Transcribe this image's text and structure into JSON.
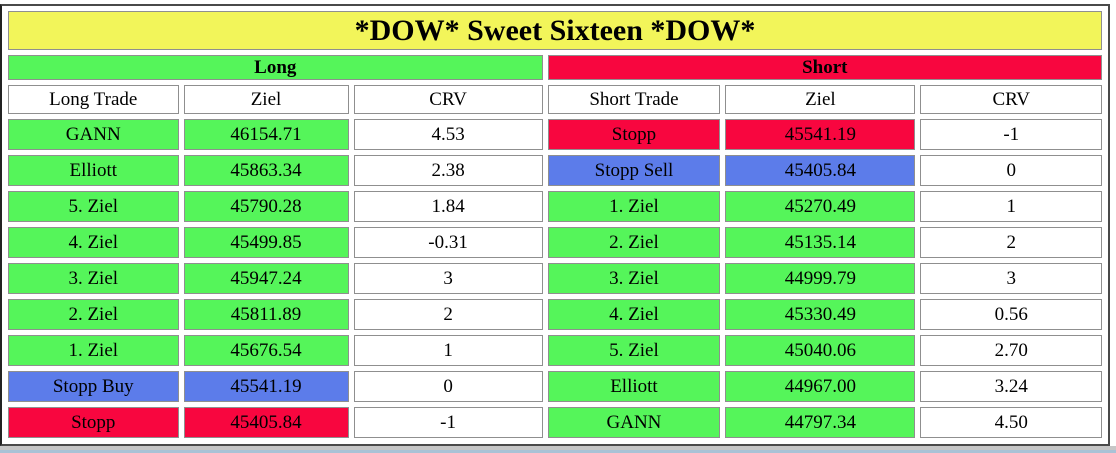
{
  "title": "*DOW* Sweet Sixteen *DOW*",
  "colors": {
    "yellow": "#F2F55A",
    "green": "#55F55A",
    "red": "#F8063F",
    "blue": "#5C7CEA",
    "cell_border": "#8f8f8f",
    "text": "#000000"
  },
  "sections": {
    "long": {
      "label": "Long",
      "header_color": "green",
      "columns": {
        "trade": "Long Trade",
        "ziel": "Ziel",
        "crv": "CRV"
      },
      "rows": [
        {
          "trade": "GANN",
          "ziel": "46154.71",
          "crv": "4.53",
          "color": "green"
        },
        {
          "trade": "Elliott",
          "ziel": "45863.34",
          "crv": "2.38",
          "color": "green"
        },
        {
          "trade": "5. Ziel",
          "ziel": "45790.28",
          "crv": "1.84",
          "color": "green"
        },
        {
          "trade": "4. Ziel",
          "ziel": "45499.85",
          "crv": "-0.31",
          "color": "green"
        },
        {
          "trade": "3. Ziel",
          "ziel": "45947.24",
          "crv": "3",
          "color": "green"
        },
        {
          "trade": "2. Ziel",
          "ziel": "45811.89",
          "crv": "2",
          "color": "green"
        },
        {
          "trade": "1. Ziel",
          "ziel": "45676.54",
          "crv": "1",
          "color": "green"
        },
        {
          "trade": "Stopp Buy",
          "ziel": "45541.19",
          "crv": "0",
          "color": "blue"
        },
        {
          "trade": "Stopp",
          "ziel": "45405.84",
          "crv": "-1",
          "color": "red"
        }
      ]
    },
    "short": {
      "label": "Short",
      "header_color": "red",
      "columns": {
        "trade": "Short Trade",
        "ziel": "Ziel",
        "crv": "CRV"
      },
      "rows": [
        {
          "trade": "Stopp",
          "ziel": "45541.19",
          "crv": "-1",
          "color": "red"
        },
        {
          "trade": "Stopp Sell",
          "ziel": "45405.84",
          "crv": "0",
          "color": "blue"
        },
        {
          "trade": "1. Ziel",
          "ziel": "45270.49",
          "crv": "1",
          "color": "green"
        },
        {
          "trade": "2. Ziel",
          "ziel": "45135.14",
          "crv": "2",
          "color": "green"
        },
        {
          "trade": "3. Ziel",
          "ziel": "44999.79",
          "crv": "3",
          "color": "green"
        },
        {
          "trade": "4. Ziel",
          "ziel": "45330.49",
          "crv": "0.56",
          "color": "green"
        },
        {
          "trade": "5. Ziel",
          "ziel": "45040.06",
          "crv": "2.70",
          "color": "green"
        },
        {
          "trade": "Elliott",
          "ziel": "44967.00",
          "crv": "3.24",
          "color": "green"
        },
        {
          "trade": "GANN",
          "ziel": "44797.34",
          "crv": "4.50",
          "color": "green"
        }
      ]
    }
  }
}
